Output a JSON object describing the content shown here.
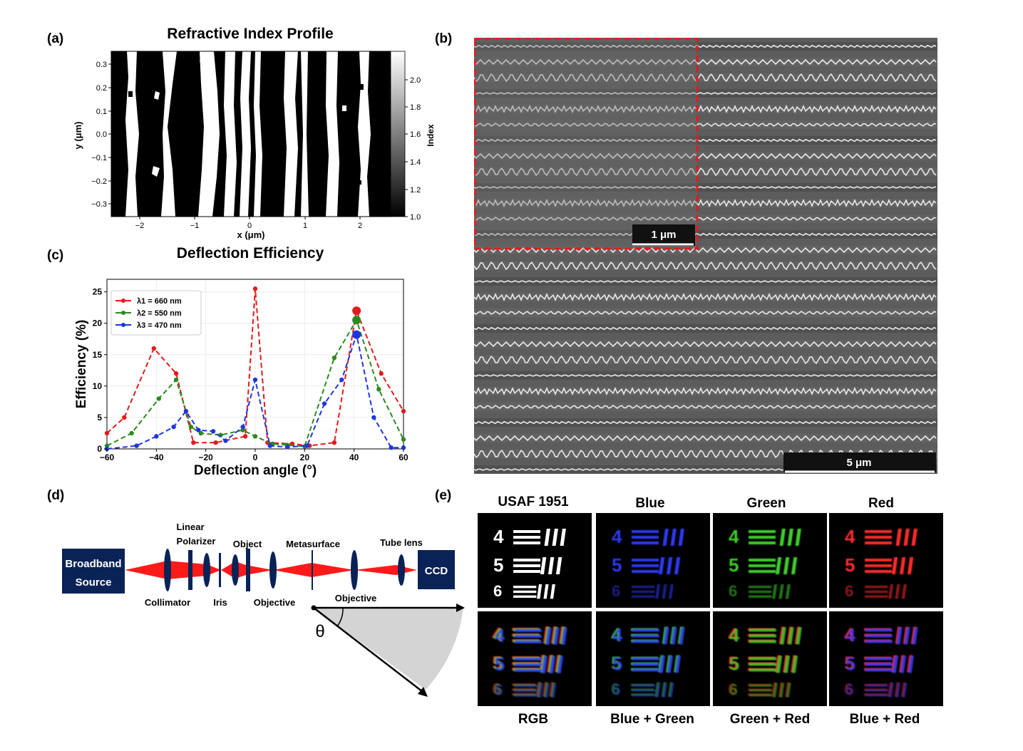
{
  "panel_labels": {
    "a": "(a)",
    "b": "(b)",
    "c": "(c)",
    "d": "(d)",
    "e": "(e)"
  },
  "panel_a": {
    "title": "Refractive Index Profile",
    "xlabel": "x (μm)",
    "ylabel": "y (μm)",
    "xticks": [
      "−2",
      "−1",
      "0",
      "1",
      "2"
    ],
    "yticks": [
      "0.3",
      "0.2",
      "0.1",
      "0.0",
      "−0.1",
      "−0.2",
      "−0.3"
    ],
    "colorbar_label": "Index",
    "colorbar_ticks": [
      "2.0",
      "1.8",
      "1.6",
      "1.4",
      "1.2",
      "1.0"
    ]
  },
  "panel_b": {
    "scalebar_inset": "1 μm",
    "scalebar_main": "5 μm"
  },
  "chart_data": {
    "type": "line",
    "title": "Deflection Efficiency",
    "xlabel": "Deflection angle (°)",
    "ylabel": "Efficiency (%)",
    "xlim": [
      -60,
      60
    ],
    "ylim": [
      0,
      27
    ],
    "xticks": [
      "−60",
      "−40",
      "−20",
      "0",
      "20",
      "40",
      "60"
    ],
    "yticks": [
      "0",
      "5",
      "10",
      "15",
      "20",
      "25"
    ],
    "series": [
      {
        "name": "λ1 = 660 nm",
        "color": "#e31a1c",
        "x": [
          -60,
          -53,
          -41,
          -32,
          -25,
          -16,
          -4,
          0,
          5,
          15,
          22,
          32,
          41,
          51,
          60
        ],
        "y": [
          2.5,
          5,
          16,
          12,
          1,
          1,
          2,
          25.5,
          1,
          0.8,
          0.5,
          1,
          22,
          12,
          6
        ]
      },
      {
        "name": "λ2 = 550 nm",
        "color": "#2a8a1f",
        "x": [
          -60,
          -50,
          -39,
          -32,
          -26,
          -22,
          -14,
          -5,
          0,
          7,
          13,
          20,
          32,
          41,
          50,
          60
        ],
        "y": [
          0.5,
          2.5,
          8,
          11,
          3.5,
          2.5,
          2.2,
          3,
          2,
          0.8,
          0.6,
          0.4,
          14.5,
          20.5,
          9.5,
          1.5
        ]
      },
      {
        "name": "λ3 = 470 nm",
        "color": "#1f35e0",
        "x": [
          -60,
          -48,
          -40,
          -33,
          -28,
          -23,
          -17,
          -12,
          -5,
          0,
          6,
          13,
          21,
          28,
          35,
          41,
          48,
          55,
          60
        ],
        "y": [
          0,
          0.5,
          2,
          3.5,
          6,
          3,
          2.8,
          1.3,
          3.5,
          11,
          0.5,
          0.3,
          0.5,
          7.2,
          11,
          18.2,
          5,
          0.2,
          0.2
        ]
      }
    ],
    "highlight_points": [
      {
        "x": 41,
        "y": 22,
        "color": "#e31a1c"
      },
      {
        "x": 41,
        "y": 20.5,
        "color": "#2a8a1f"
      },
      {
        "x": 41,
        "y": 18.2,
        "color": "#1f35e0"
      }
    ]
  },
  "panel_d": {
    "source": [
      "Broadband",
      "Source"
    ],
    "ccd": "CCD",
    "labels": {
      "linear": "Linear",
      "polarizer": "Polarizer",
      "object": "Object",
      "metasurface": "Metasurface",
      "tube_lens": "Tube lens",
      "collimator": "Collimator",
      "iris": "Iris",
      "objective1": "Objective",
      "objective2": "Objective",
      "theta": "θ"
    }
  },
  "panel_e": {
    "top_titles": [
      "USAF 1951",
      "Blue",
      "Green",
      "Red"
    ],
    "bottom_titles": [
      "RGB",
      "Blue + Green",
      "Green + Red",
      "Blue + Red"
    ],
    "digits": [
      "4",
      "5",
      "6"
    ],
    "colors": {
      "white": "#ffffff",
      "blue": "#2f3cff",
      "green": "#3ccf2a",
      "red": "#ff2a2a"
    }
  }
}
